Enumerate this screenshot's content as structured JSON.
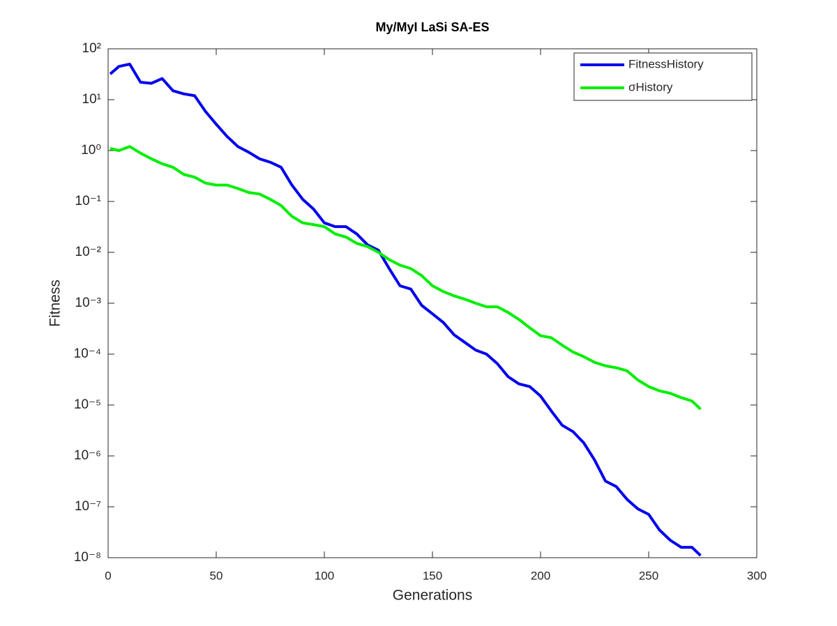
{
  "chart_data": {
    "type": "line",
    "title": "My/MyI LaSi SA-ES",
    "xlabel": "Generations",
    "ylabel": "Fitness",
    "x": [
      1,
      5,
      10,
      15,
      20,
      25,
      30,
      35,
      40,
      45,
      50,
      55,
      60,
      65,
      70,
      75,
      80,
      85,
      90,
      95,
      100,
      105,
      110,
      115,
      120,
      125,
      130,
      135,
      140,
      145,
      150,
      155,
      160,
      165,
      170,
      175,
      180,
      185,
      190,
      195,
      200,
      205,
      210,
      215,
      220,
      225,
      230,
      235,
      240,
      245,
      250,
      255,
      260,
      265,
      270,
      274
    ],
    "series": [
      {
        "name": "FitnessHistory",
        "color": "#0000ee",
        "values": [
          32,
          45,
          50,
          22,
          21,
          26,
          15,
          13,
          12,
          5.9,
          3.3,
          1.9,
          1.2,
          0.93,
          0.69,
          0.59,
          0.47,
          0.21,
          0.11,
          0.071,
          0.038,
          0.032,
          0.032,
          0.023,
          0.014,
          0.011,
          0.0048,
          0.0022,
          0.0019,
          0.00091,
          0.00062,
          0.00042,
          0.00024,
          0.00017,
          0.00012,
          0.0001,
          6.5e-05,
          3.6e-05,
          2.6e-05,
          2.3e-05,
          1.5e-05,
          7.6e-06,
          4e-06,
          3e-06,
          1.8e-06,
          8.3e-07,
          3.2e-07,
          2.5e-07,
          1.4e-07,
          9.1e-08,
          7.1e-08,
          3.5e-08,
          2.2e-08,
          1.6e-08,
          1.6e-08,
          1.1e-08
        ]
      },
      {
        "name": "σHistory",
        "color": "#00ee00",
        "values": [
          1.1,
          1.0,
          1.2,
          0.89,
          0.69,
          0.55,
          0.47,
          0.34,
          0.3,
          0.23,
          0.21,
          0.21,
          0.18,
          0.15,
          0.14,
          0.11,
          0.083,
          0.051,
          0.038,
          0.035,
          0.032,
          0.023,
          0.02,
          0.015,
          0.013,
          0.01,
          0.0072,
          0.0056,
          0.0048,
          0.0035,
          0.0022,
          0.0017,
          0.0014,
          0.0012,
          0.001,
          0.00085,
          0.00085,
          0.00066,
          0.00048,
          0.00033,
          0.00023,
          0.00021,
          0.00015,
          0.00011,
          8.9e-05,
          6.9e-05,
          5.9e-05,
          5.4e-05,
          4.7e-05,
          3.1e-05,
          2.3e-05,
          1.9e-05,
          1.7e-05,
          1.4e-05,
          1.2e-05,
          8.3e-06
        ]
      }
    ],
    "xlim": [
      0,
      300
    ],
    "xticks": [
      0,
      50,
      100,
      150,
      200,
      250,
      300
    ],
    "ylim": [
      1e-08,
      100
    ],
    "yscale": "log",
    "yticks": [
      {
        "value": 1e-08,
        "label": "10⁻⁸"
      },
      {
        "value": 1e-07,
        "label": "10⁻⁷"
      },
      {
        "value": 1e-06,
        "label": "10⁻⁶"
      },
      {
        "value": 1e-05,
        "label": "10⁻⁵"
      },
      {
        "value": 0.0001,
        "label": "10⁻⁴"
      },
      {
        "value": 0.001,
        "label": "10⁻³"
      },
      {
        "value": 0.01,
        "label": "10⁻²"
      },
      {
        "value": 0.1,
        "label": "10⁻¹"
      },
      {
        "value": 1,
        "label": "10⁰"
      },
      {
        "value": 10,
        "label": "10¹"
      },
      {
        "value": 100,
        "label": "10²"
      }
    ],
    "grid": false,
    "legend": "northeast"
  }
}
